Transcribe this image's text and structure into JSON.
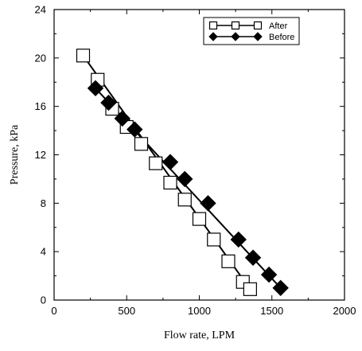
{
  "chart_data": {
    "type": "scatter",
    "xlabel": "Flow rate, LPM",
    "ylabel": "Pressure, kPa",
    "xlim": [
      0,
      2000
    ],
    "ylim": [
      0,
      24
    ],
    "xticks": [
      0,
      500,
      1000,
      1500,
      2000
    ],
    "yticks": [
      0,
      4,
      8,
      12,
      16,
      20,
      24
    ],
    "grid": false,
    "legend_position": "top-right",
    "series": [
      {
        "name": "After",
        "marker": "open-square",
        "color": "#000000",
        "x": [
          200,
          300,
          400,
          500,
          600,
          700,
          800,
          900,
          1000,
          1100,
          1200,
          1300,
          1350
        ],
        "y": [
          20.2,
          18.2,
          15.8,
          14.3,
          12.9,
          11.3,
          9.7,
          8.3,
          6.7,
          5.0,
          3.2,
          1.5,
          0.9
        ],
        "fit_line": {
          "x": [
            200,
            1350
          ],
          "y": [
            20.2,
            0.9
          ]
        }
      },
      {
        "name": "Before",
        "marker": "filled-diamond",
        "color": "#000000",
        "x": [
          285,
          375,
          470,
          555,
          800,
          900,
          1060,
          1270,
          1370,
          1480,
          1560
        ],
        "y": [
          17.5,
          16.3,
          15.0,
          14.1,
          11.4,
          10.0,
          8.0,
          5.0,
          3.5,
          2.1,
          1.0
        ],
        "fit_line": {
          "x": [
            285,
            1560
          ],
          "y": [
            17.5,
            1.0
          ]
        }
      }
    ]
  }
}
